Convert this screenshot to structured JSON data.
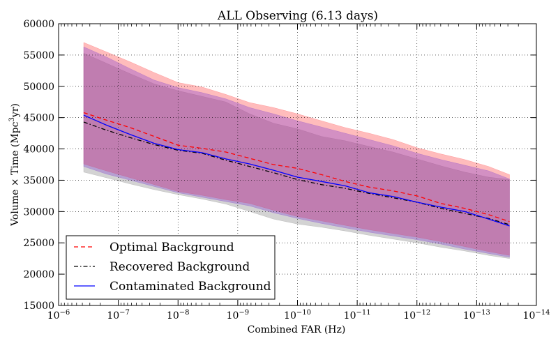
{
  "chart_data": {
    "type": "line",
    "title": "ALL Observing (6.13 days)",
    "xlabel": "Combined FAR (Hz)",
    "ylabel": {
      "prefix": "Volume × Time (Mpc",
      "sup": "3",
      "suffix": "yr)"
    },
    "x_scale": "log",
    "x_reversed": true,
    "xlim": [
      1e-06,
      1e-14
    ],
    "ylim": [
      15000,
      60000
    ],
    "grid": true,
    "x_tick_labels": [
      {
        "exp": -6,
        "base": "10",
        "power": "−6"
      },
      {
        "exp": -7,
        "base": "10",
        "power": "−7"
      },
      {
        "exp": -8,
        "base": "10",
        "power": "−8"
      },
      {
        "exp": -9,
        "base": "10",
        "power": "−9"
      },
      {
        "exp": -10,
        "base": "10",
        "power": "−10"
      },
      {
        "exp": -11,
        "base": "10",
        "power": "−11"
      },
      {
        "exp": -12,
        "base": "10",
        "power": "−12"
      },
      {
        "exp": -13,
        "base": "10",
        "power": "−13"
      },
      {
        "exp": -14,
        "base": "10",
        "power": "−14"
      }
    ],
    "y_ticks": [
      15000,
      20000,
      25000,
      30000,
      35000,
      40000,
      45000,
      50000,
      55000,
      60000
    ],
    "y_tick_labels": [
      "15000",
      "20000",
      "25000",
      "30000",
      "35000",
      "40000",
      "45000",
      "50000",
      "55000",
      "60000"
    ],
    "legend_position": "bottom-left",
    "series": [
      {
        "name": "Optimal Background",
        "color": "#ff0000",
        "style": "dashed",
        "x_log10": [
          -6.42,
          -6.8,
          -7.2,
          -7.6,
          -8.0,
          -8.4,
          -8.8,
          -9.2,
          -9.6,
          -10.0,
          -10.4,
          -10.8,
          -11.2,
          -11.6,
          -12.0,
          -12.4,
          -12.8,
          -13.2,
          -13.55
        ],
        "y": [
          45800,
          44600,
          43400,
          42000,
          40600,
          40100,
          39500,
          38500,
          37500,
          36900,
          35900,
          34800,
          33900,
          33300,
          32500,
          31300,
          30500,
          29500,
          28400
        ]
      },
      {
        "name": "Recovered Background",
        "color": "#000000",
        "style": "dashdot",
        "x_log10": [
          -6.42,
          -6.8,
          -7.2,
          -7.6,
          -8.0,
          -8.4,
          -8.8,
          -9.2,
          -9.6,
          -10.0,
          -10.4,
          -10.8,
          -11.2,
          -11.6,
          -12.0,
          -12.4,
          -12.8,
          -13.2,
          -13.55
        ],
        "y": [
          44300,
          43000,
          41800,
          40700,
          39800,
          39300,
          38200,
          37200,
          36200,
          35100,
          34300,
          33700,
          32900,
          32200,
          31500,
          30500,
          29700,
          28900,
          27900
        ]
      },
      {
        "name": "Contaminated Background",
        "color": "#0000ff",
        "style": "solid",
        "x_log10": [
          -6.42,
          -6.8,
          -7.2,
          -7.6,
          -8.0,
          -8.4,
          -8.8,
          -9.2,
          -9.6,
          -10.0,
          -10.4,
          -10.8,
          -11.2,
          -11.6,
          -12.0,
          -12.4,
          -12.8,
          -13.2,
          -13.55
        ],
        "y": [
          45400,
          43800,
          42300,
          40900,
          39900,
          39400,
          38400,
          37600,
          36600,
          35500,
          34800,
          34100,
          33000,
          32400,
          31500,
          30700,
          30000,
          28800,
          27700
        ]
      }
    ],
    "bands": [
      {
        "name": "Recovered Background range",
        "color": "#808080",
        "x_log10": [
          -6.42,
          -6.8,
          -7.2,
          -7.6,
          -8.0,
          -8.4,
          -8.8,
          -9.2,
          -9.6,
          -10.0,
          -10.4,
          -10.8,
          -11.2,
          -11.6,
          -12.0,
          -12.4,
          -12.8,
          -13.2,
          -13.55
        ],
        "lower": [
          36300,
          35400,
          34400,
          33500,
          32700,
          32000,
          31200,
          30000,
          28800,
          28000,
          27500,
          26900,
          26200,
          25600,
          25000,
          24300,
          23700,
          23000,
          22500
        ],
        "upper": [
          55300,
          53700,
          52000,
          50400,
          49300,
          48400,
          47500,
          45600,
          44100,
          43200,
          42000,
          41300,
          40400,
          39500,
          38400,
          37300,
          36300,
          35500,
          35100
        ]
      },
      {
        "name": "Optimal Background range",
        "color": "#ff4040",
        "x_log10": [
          -6.42,
          -6.8,
          -7.2,
          -7.6,
          -8.0,
          -8.4,
          -8.8,
          -9.2,
          -9.6,
          -10.0,
          -10.4,
          -10.8,
          -11.2,
          -11.6,
          -12.0,
          -12.4,
          -12.8,
          -13.2,
          -13.55
        ],
        "lower": [
          37600,
          36500,
          35400,
          34300,
          33200,
          32600,
          31900,
          31300,
          30200,
          29200,
          28500,
          27800,
          27100,
          26500,
          25900,
          25200,
          24400,
          23600,
          23000
        ],
        "upper": [
          57000,
          55500,
          53900,
          52200,
          50600,
          49900,
          48700,
          47400,
          46600,
          45600,
          44500,
          43400,
          42500,
          41500,
          40200,
          39200,
          38300,
          37200,
          35900
        ]
      },
      {
        "name": "Contaminated Background range",
        "color": "#8040d0",
        "x_log10": [
          -6.42,
          -6.8,
          -7.2,
          -7.6,
          -8.0,
          -8.4,
          -8.8,
          -9.2,
          -9.6,
          -10.0,
          -10.4,
          -10.8,
          -11.2,
          -11.6,
          -12.0,
          -12.4,
          -12.8,
          -13.2,
          -13.55
        ],
        "lower": [
          37200,
          36000,
          35000,
          34000,
          33000,
          32300,
          31600,
          30900,
          29800,
          28900,
          28100,
          27400,
          26700,
          26100,
          25500,
          24800,
          24000,
          23300,
          22700
        ],
        "upper": [
          56300,
          54700,
          52800,
          51000,
          49800,
          49000,
          48000,
          46600,
          45600,
          44500,
          43500,
          42500,
          41500,
          40500,
          39300,
          38300,
          37400,
          36500,
          35200
        ]
      }
    ]
  }
}
